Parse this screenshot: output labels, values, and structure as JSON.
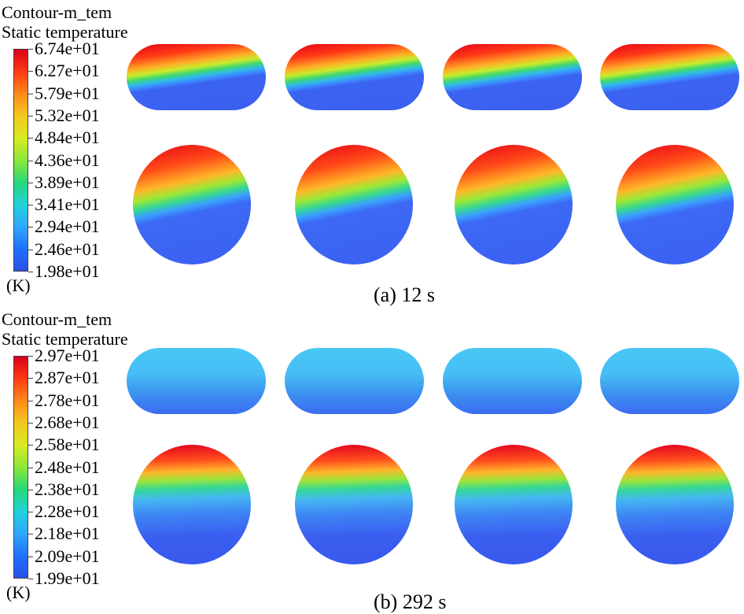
{
  "panels": [
    {
      "title_line1": "Contour-m_tem",
      "title_line2": "Static temperature",
      "unit": "(K)",
      "caption": "(a) 12 s",
      "legend_labels": [
        "6.74e+01",
        "6.27e+01",
        "5.79e+01",
        "5.32e+01",
        "4.84e+01",
        "4.36e+01",
        "3.89e+01",
        "3.41e+01",
        "2.94e+01",
        "2.46e+01",
        "1.98e+01"
      ],
      "legend_range": [
        19.8,
        67.4
      ]
    },
    {
      "title_line1": "Contour-m_tem",
      "title_line2": "Static temperature",
      "unit": "(K)",
      "caption": "(b) 292 s",
      "legend_labels": [
        "2.97e+01",
        "2.87e+01",
        "2.78e+01",
        "2.68e+01",
        "2.58e+01",
        "2.48e+01",
        "2.38e+01",
        "2.28e+01",
        "2.18e+01",
        "2.09e+01",
        "1.99e+01"
      ],
      "legend_range": [
        19.9,
        29.7
      ]
    }
  ],
  "colormap": [
    "#d9001c",
    "#ff3a10",
    "#ff8a1a",
    "#f2c81f",
    "#d8ea22",
    "#8be838",
    "#28d87a",
    "#22d2d9",
    "#2fa7ff",
    "#1f71ff",
    "#2a4fe8"
  ]
}
